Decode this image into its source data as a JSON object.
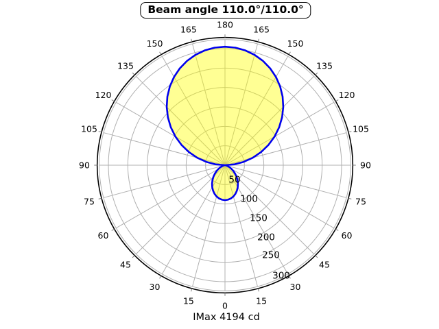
{
  "title": "Beam angle 110.0°/110.0°",
  "caption": "IMax 4194 cd",
  "chart_data": {
    "type": "polar",
    "subtype": "photometric-intensity-distribution",
    "title": "Beam angle 110.0°/110.0°",
    "beam_angle_deg_c0": 110.0,
    "beam_angle_deg_c90": 110.0,
    "imax_cd": 4194,
    "caption": "IMax 4194 cd",
    "orientation": {
      "gamma_0_position": "bottom",
      "gamma_180_position": "top",
      "mirrored_left_right": true
    },
    "angle_ticks_deg": [
      0,
      15,
      30,
      45,
      60,
      75,
      90,
      105,
      120,
      135,
      150,
      165,
      180
    ],
    "angle_grid_step_deg": 15,
    "r_ticks": [
      50,
      100,
      150,
      200,
      250,
      300
    ],
    "r_axis_max": 330,
    "grid": true,
    "curve_points_gamma_cd": [
      [
        0,
        90.0
      ],
      [
        5,
        89.2
      ],
      [
        10,
        87.0
      ],
      [
        15,
        83.4
      ],
      [
        20,
        78.5
      ],
      [
        25,
        72.5
      ],
      [
        30,
        65.6
      ],
      [
        35,
        58.0
      ],
      [
        40,
        50.1
      ],
      [
        45,
        42.0
      ],
      [
        50,
        34.0
      ],
      [
        55,
        26.5
      ],
      [
        60,
        19.6
      ],
      [
        65,
        13.5
      ],
      [
        70,
        8.5
      ],
      [
        75,
        4.6
      ],
      [
        80,
        1.9
      ],
      [
        85,
        0.4
      ],
      [
        90,
        0.0
      ],
      [
        95,
        23.5
      ],
      [
        100,
        48.5
      ],
      [
        105,
        73.8
      ],
      [
        110,
        98.9
      ],
      [
        115,
        123.5
      ],
      [
        120,
        147.3
      ],
      [
        125,
        170.1
      ],
      [
        130,
        191.8
      ],
      [
        135,
        212.0
      ],
      [
        140,
        230.6
      ],
      [
        145,
        247.4
      ],
      [
        150,
        262.2
      ],
      [
        155,
        275.1
      ],
      [
        160,
        285.7
      ],
      [
        165,
        294.1
      ],
      [
        170,
        300.1
      ],
      [
        175,
        303.8
      ],
      [
        180,
        305.0
      ]
    ],
    "colors": {
      "curve": "#0000ee",
      "fill": "#ffff99",
      "fill_overlay": "rgba(255,255,0,0.42)",
      "grid": "#b0b0b0",
      "outline": "#000000",
      "tick": "#808080",
      "text": "#000000"
    }
  }
}
